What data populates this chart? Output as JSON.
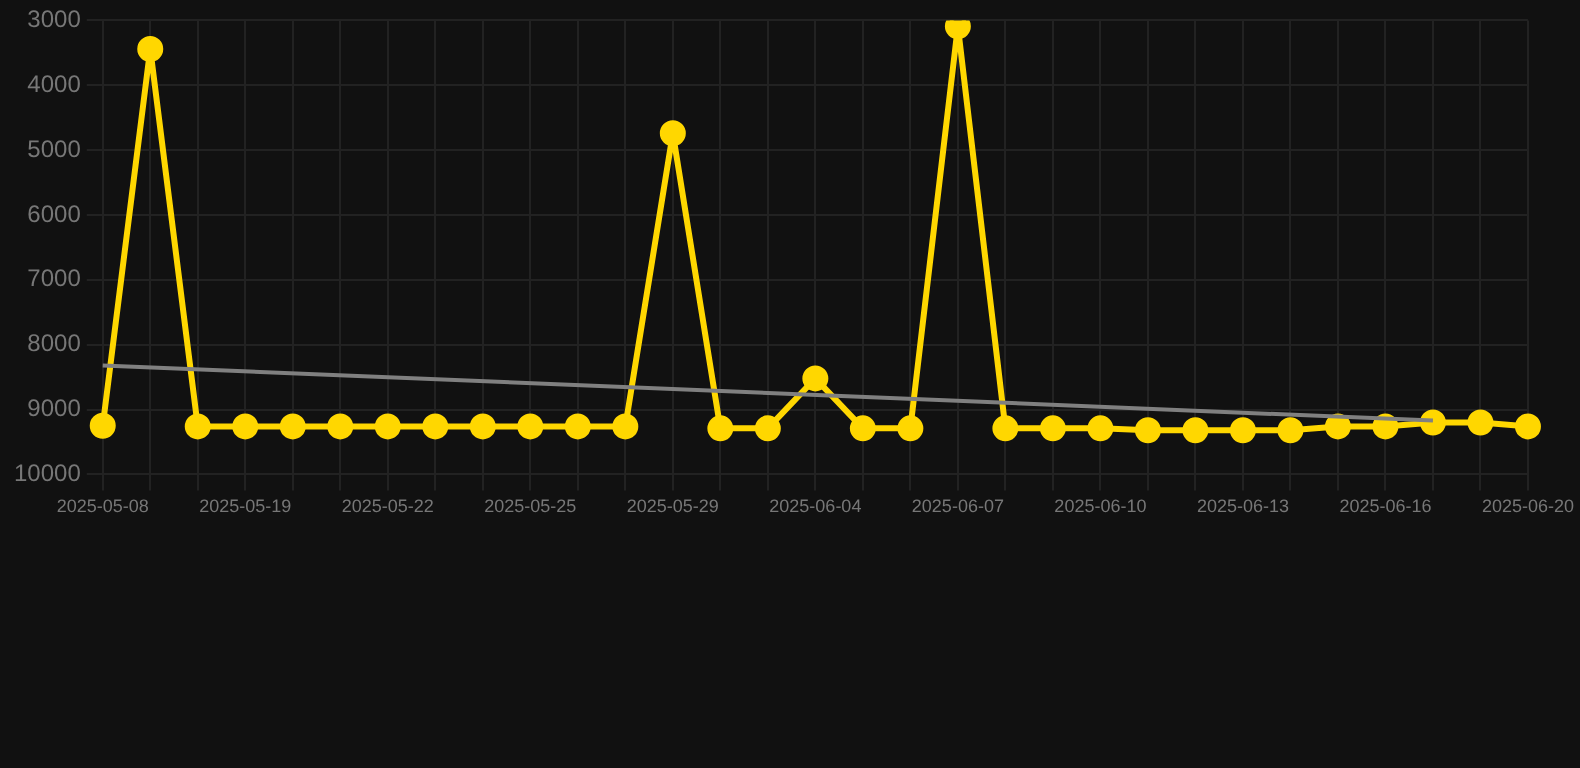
{
  "chart_data": {
    "type": "line",
    "categories": [
      "2025-05-08",
      null,
      null,
      "2025-05-19",
      null,
      null,
      "2025-05-22",
      null,
      null,
      "2025-05-25",
      null,
      null,
      "2025-05-29",
      null,
      null,
      "2025-06-04",
      null,
      null,
      "2025-06-07",
      null,
      null,
      "2025-06-10",
      null,
      null,
      "2025-06-13",
      null,
      null,
      "2025-06-16",
      null,
      null,
      "2025-06-20"
    ],
    "series": [
      {
        "color": "#ffd700",
        "marker": "circle",
        "values": [
          9250,
          3440,
          9260,
          9260,
          9260,
          9260,
          9260,
          9260,
          9260,
          9260,
          9260,
          9260,
          4740,
          9290,
          9290,
          8520,
          9290,
          9290,
          3090,
          9290,
          9290,
          9290,
          9320,
          9320,
          9320,
          9320,
          9260,
          9260,
          9200,
          9200,
          9260
        ]
      },
      {
        "type": "line",
        "color": "#808080",
        "marker": "none",
        "values": [
          8320,
          null,
          null,
          null,
          null,
          null,
          null,
          null,
          null,
          null,
          null,
          null,
          null,
          null,
          null,
          null,
          null,
          null,
          null,
          null,
          null,
          null,
          null,
          null,
          null,
          null,
          null,
          null,
          9170,
          null,
          null
        ]
      }
    ],
    "ylim": [
      10000,
      3000
    ],
    "yticks": [
      3000,
      4000,
      5000,
      6000,
      7000,
      8000,
      9000,
      10000
    ],
    "grid": true
  }
}
